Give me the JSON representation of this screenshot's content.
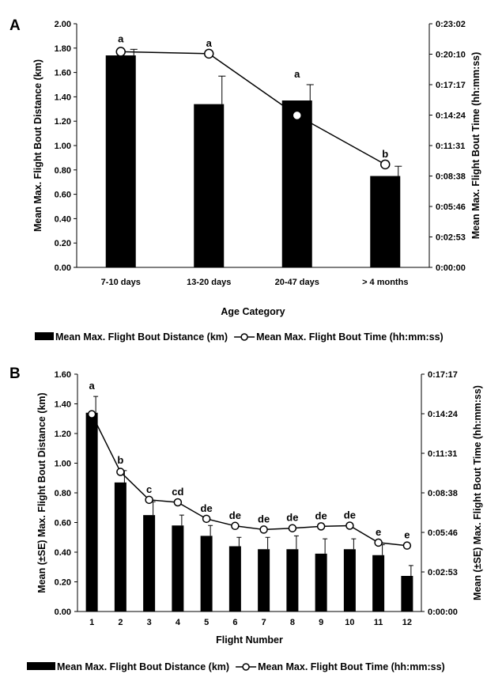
{
  "chart_data": [
    {
      "panel": "A",
      "type": "bar",
      "categories": [
        "7-10 days",
        "13-20 days",
        "20-47 days",
        "> 4 months"
      ],
      "series": [
        {
          "name": "Mean Max. Flight Bout Distance (km)",
          "type": "bar",
          "axis": "left",
          "values": [
            1.74,
            1.34,
            1.37,
            0.75
          ],
          "errors": [
            0.05,
            0.23,
            0.13,
            0.08
          ]
        },
        {
          "name": "Mean Max. Flight Bout Time (hh:mm:ss)",
          "type": "line",
          "axis": "right",
          "values_seconds": [
            1223,
            1212,
            862,
            584
          ]
        }
      ],
      "significance_labels": [
        "a",
        "a",
        "a",
        "b"
      ],
      "xlabel": "Age Category",
      "ylabel": "Mean Max. Flight Bout Distance (km)",
      "ylabel_right": "Mean Max. Flight Bout Time (hh:mm:ss)",
      "ylim": [
        0,
        2.0
      ],
      "yticks": [
        "0.00",
        "0.20",
        "0.40",
        "0.60",
        "0.80",
        "1.00",
        "1.20",
        "1.40",
        "1.60",
        "1.80",
        "2.00"
      ],
      "ylim_right_seconds": [
        0,
        1382
      ],
      "yticks_right": [
        "0:00:00",
        "0:02:53",
        "0:05:46",
        "0:08:38",
        "0:11:31",
        "0:14:24",
        "0:17:17",
        "0:20:10",
        "0:23:02"
      ],
      "grid": false,
      "legend_position": "bottom"
    },
    {
      "panel": "B",
      "type": "bar",
      "categories": [
        "1",
        "2",
        "3",
        "4",
        "5",
        "6",
        "7",
        "8",
        "9",
        "10",
        "11",
        "12"
      ],
      "series": [
        {
          "name": "Mean Max. Flight Bout Distance (km)",
          "type": "bar",
          "axis": "left",
          "values": [
            1.34,
            0.87,
            0.65,
            0.58,
            0.51,
            0.44,
            0.42,
            0.42,
            0.39,
            0.42,
            0.38,
            0.24
          ],
          "errors": [
            0.11,
            0.08,
            0.09,
            0.07,
            0.07,
            0.06,
            0.08,
            0.09,
            0.1,
            0.07,
            0.07,
            0.07
          ]
        },
        {
          "name": "Mean Max. Flight Bout Time (hh:mm:ss)",
          "type": "line",
          "axis": "right",
          "values_seconds": [
            862,
            610,
            488,
            477,
            405,
            374,
            358,
            364,
            372,
            375,
            301,
            288
          ]
        }
      ],
      "significance_labels": [
        "a",
        "b",
        "c",
        "cd",
        "de",
        "de",
        "de",
        "de",
        "de",
        "de",
        "e",
        "e"
      ],
      "xlabel": "Flight Number",
      "ylabel": "Mean (±SE) Max. Flight Bout Distance (km)",
      "ylabel_right": "Mean (±SE) Max. Flight Bout Time (hh:mm:ss)",
      "ylim": [
        0,
        1.6
      ],
      "yticks": [
        "0.00",
        "0.20",
        "0.40",
        "0.60",
        "0.80",
        "1.00",
        "1.20",
        "1.40",
        "1.60"
      ],
      "ylim_right_seconds": [
        0,
        1037
      ],
      "yticks_right": [
        "0:00:00",
        "0:02:53",
        "0:05:46",
        "0:08:38",
        "0:11:31",
        "0:14:24",
        "0:17:17"
      ],
      "grid": false,
      "legend_position": "bottom"
    }
  ]
}
